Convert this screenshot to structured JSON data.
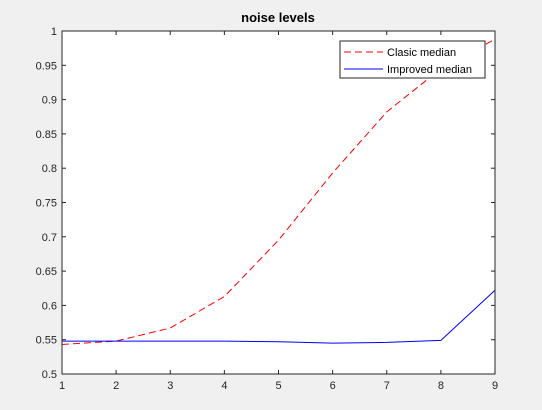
{
  "chart_data": {
    "type": "line",
    "title": "noise levels",
    "xlabel": "",
    "ylabel": "",
    "x": [
      1,
      2,
      3,
      4,
      5,
      6,
      7,
      8,
      9
    ],
    "xlim": [
      1,
      9
    ],
    "ylim": [
      0.5,
      1
    ],
    "x_ticks": [
      "1",
      "2",
      "3",
      "4",
      "5",
      "6",
      "7",
      "8",
      "9"
    ],
    "y_ticks": [
      "0.5",
      "0.55",
      "0.6",
      "0.65",
      "0.7",
      "0.75",
      "0.8",
      "0.85",
      "0.9",
      "0.95",
      "1"
    ],
    "grid": false,
    "legend_position": "top-right",
    "series": [
      {
        "name": "Clasic median",
        "color": "#ff0000",
        "style": "dashed",
        "values": [
          0.543,
          0.548,
          0.567,
          0.613,
          0.695,
          0.793,
          0.882,
          0.945,
          0.988
        ]
      },
      {
        "name": "Improved median",
        "color": "#0000ff",
        "style": "solid",
        "values": [
          0.548,
          0.548,
          0.548,
          0.548,
          0.547,
          0.545,
          0.546,
          0.549,
          0.622
        ]
      }
    ]
  }
}
